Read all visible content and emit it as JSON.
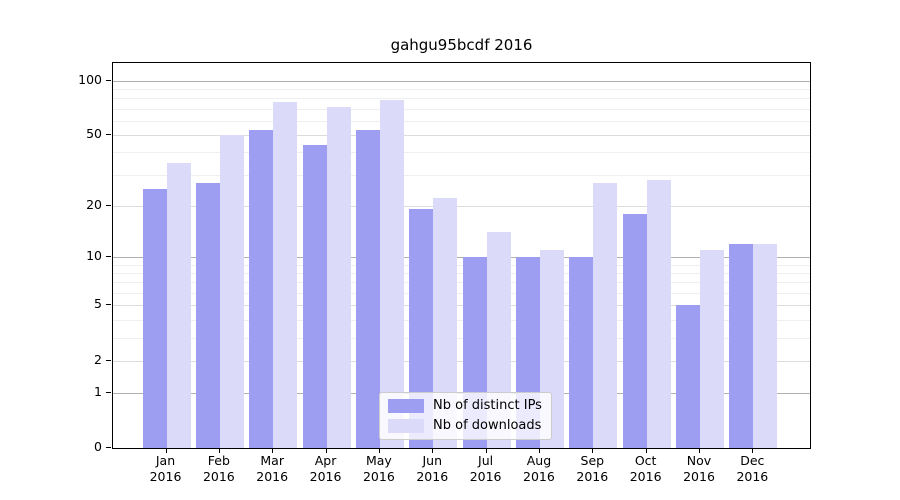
{
  "chart_data": {
    "type": "bar",
    "title": "gahgu95bcdf 2016",
    "categories": [
      "Jan",
      "Feb",
      "Mar",
      "Apr",
      "May",
      "Jun",
      "Jul",
      "Aug",
      "Sep",
      "Oct",
      "Nov",
      "Dec"
    ],
    "category_year": "2016",
    "series": [
      {
        "name": "Nb of distinct IPs",
        "color": "#9d9df2",
        "values": [
          25,
          27,
          53,
          44,
          53,
          19,
          10,
          10,
          10,
          18,
          5,
          12
        ]
      },
      {
        "name": "Nb of downloads",
        "color": "#dbdbf9",
        "values": [
          35,
          50,
          76,
          71,
          78,
          22,
          14,
          11,
          27,
          28,
          11,
          12
        ]
      }
    ],
    "y_axis": {
      "scale": "log10(x+1)",
      "ticks": [
        0,
        1,
        2,
        5,
        10,
        20,
        50,
        100
      ],
      "major_gridlines": [
        1,
        10,
        100
      ],
      "mid_gridlines": [
        2,
        5,
        20,
        50
      ],
      "minor_gridlines": [
        3,
        4,
        6,
        7,
        8,
        9,
        30,
        40,
        60,
        70,
        80,
        90
      ],
      "ylim": [
        0,
        120
      ]
    },
    "legend_position": "bottom-center",
    "grid": true
  }
}
